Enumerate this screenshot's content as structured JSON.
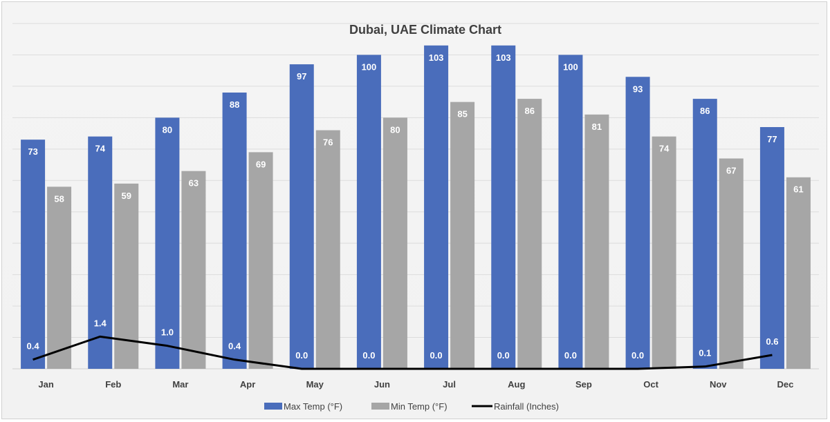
{
  "chart_data": {
    "type": "bar",
    "title": "Dubai, UAE Climate Chart",
    "categories": [
      "Jan",
      "Feb",
      "Mar",
      "Apr",
      "May",
      "Jun",
      "Jul",
      "Aug",
      "Sep",
      "Oct",
      "Nov",
      "Dec"
    ],
    "series": [
      {
        "name": "Max Temp (°F)",
        "kind": "bar",
        "color": "#4a6dbb",
        "values": [
          73,
          74,
          80,
          88,
          97,
          100,
          103,
          103,
          100,
          93,
          86,
          77
        ]
      },
      {
        "name": "Min Temp (°F)",
        "kind": "bar",
        "color": "#a6a6a6",
        "values": [
          58,
          59,
          63,
          69,
          76,
          80,
          85,
          86,
          81,
          74,
          67,
          61
        ]
      },
      {
        "name": "Rainfall (Inches)",
        "kind": "line",
        "color": "#000000",
        "values": [
          0.4,
          1.4,
          1.0,
          0.4,
          0.0,
          0.0,
          0.0,
          0.0,
          0.0,
          0.0,
          0.1,
          0.6
        ],
        "labels": [
          "0.4",
          "1.4",
          "1.0",
          "0.4",
          "0.0",
          "0.0",
          "0.0",
          "0.0",
          "0.0",
          "0.0",
          "0.1",
          "0.6"
        ]
      }
    ],
    "ylim": [
      0,
      110
    ],
    "grid": true,
    "legend": "bottom",
    "xlabel": "",
    "ylabel": ""
  }
}
